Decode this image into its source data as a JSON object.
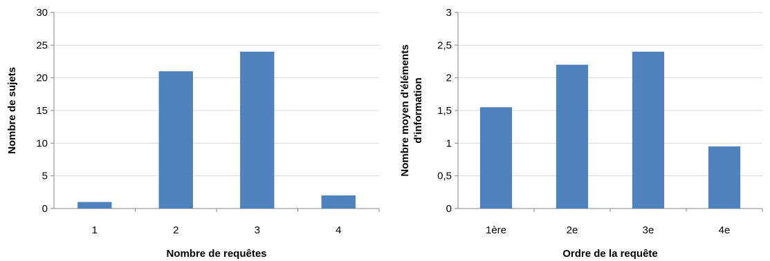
{
  "chart_data": [
    {
      "type": "bar",
      "title": "",
      "categories": [
        "1",
        "2",
        "3",
        "4"
      ],
      "values": [
        1,
        21,
        24,
        2
      ],
      "xlabel": "Nombre de requêtes",
      "ylabel": "Nombre de sujets",
      "ylim": [
        0,
        30
      ],
      "yticks": [
        "0",
        "5",
        "10",
        "15",
        "20",
        "25",
        "30"
      ],
      "grid": true,
      "legend": "none",
      "bar_color": "#4f81bd"
    },
    {
      "type": "bar",
      "title": "",
      "categories": [
        "1ère",
        "2e",
        "3e",
        "4e"
      ],
      "values": [
        1.55,
        2.2,
        2.4,
        0.95
      ],
      "xlabel": "Ordre de la requête",
      "ylabel": [
        "Nombre moyen d'éléments",
        "d'information"
      ],
      "ylim": [
        0,
        3
      ],
      "yticks": [
        "0",
        "0,5",
        "1",
        "1,5",
        "2",
        "2,5",
        "3"
      ],
      "grid": true,
      "legend": "none",
      "bar_color": "#4f81bd"
    }
  ]
}
